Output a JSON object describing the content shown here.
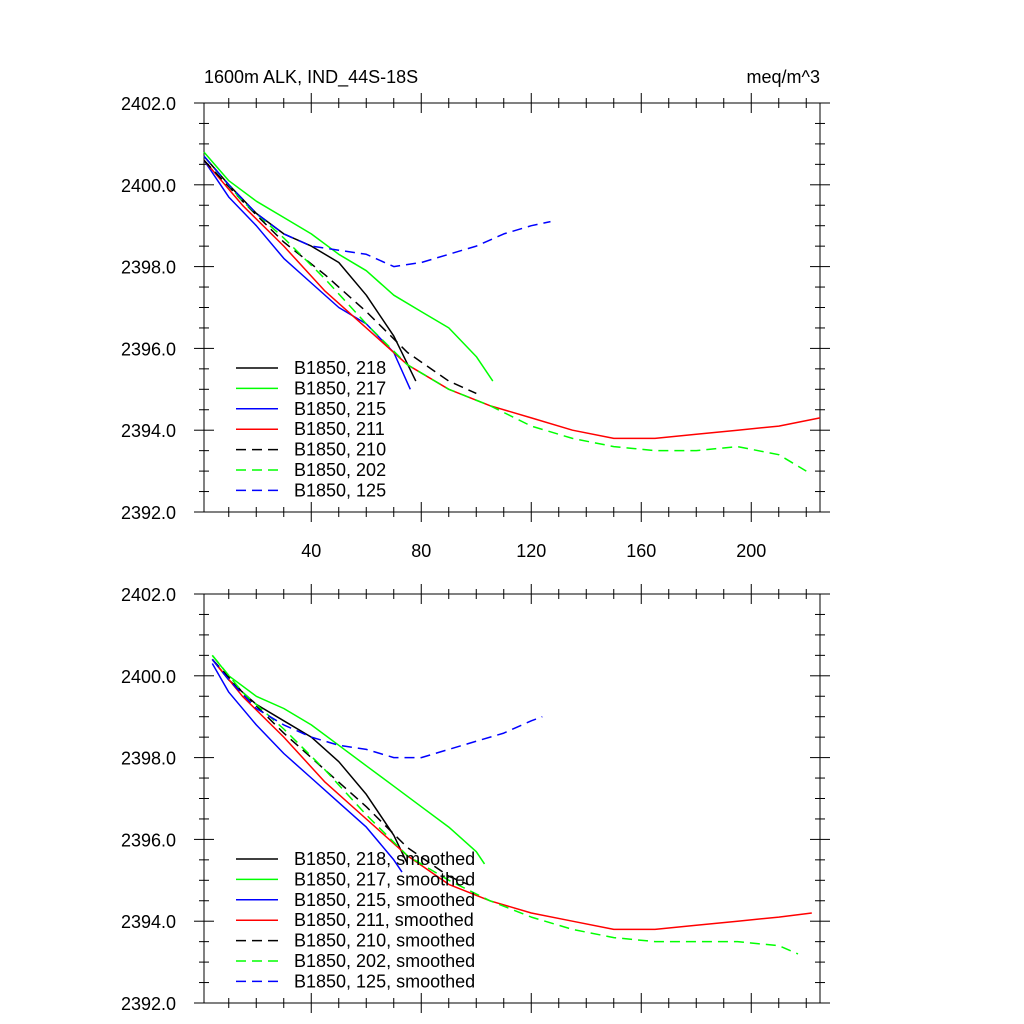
{
  "chart_data": [
    {
      "type": "line",
      "title": "1600m ALK, IND_44S-18S",
      "units": "meq/m^3",
      "xlim": [
        1,
        225
      ],
      "ylim": [
        2392.0,
        2402.0
      ],
      "x_ticks": [
        40,
        80,
        120,
        160,
        200
      ],
      "y_ticks": [
        "2392.0",
        "2394.0",
        "2396.0",
        "2398.0",
        "2400.0",
        "2402.0"
      ],
      "series": [
        {
          "name": "B1850, 218",
          "color": "#000000",
          "dash": "solid",
          "x": [
            1,
            10,
            20,
            30,
            40,
            50,
            60,
            70,
            78
          ],
          "y": [
            2400.7,
            2400.0,
            2399.3,
            2398.8,
            2398.5,
            2398.1,
            2397.3,
            2396.3,
            2395.2
          ]
        },
        {
          "name": "B1850, 217",
          "color": "#00ff00",
          "dash": "solid",
          "x": [
            1,
            10,
            20,
            30,
            40,
            50,
            60,
            70,
            80,
            90,
            100,
            106
          ],
          "y": [
            2400.8,
            2400.1,
            2399.6,
            2399.2,
            2398.8,
            2398.3,
            2397.9,
            2397.3,
            2396.9,
            2396.5,
            2395.8,
            2395.2
          ]
        },
        {
          "name": "B1850, 215",
          "color": "#0000ff",
          "dash": "solid",
          "x": [
            1,
            10,
            20,
            30,
            40,
            50,
            60,
            70,
            76
          ],
          "y": [
            2400.6,
            2399.7,
            2399.0,
            2398.2,
            2397.6,
            2397.0,
            2396.6,
            2395.9,
            2395.0
          ]
        },
        {
          "name": "B1850, 211",
          "color": "#ff0000",
          "dash": "solid",
          "x": [
            1,
            15,
            30,
            45,
            60,
            75,
            90,
            105,
            120,
            135,
            150,
            165,
            180,
            195,
            210,
            225
          ],
          "y": [
            2400.6,
            2399.5,
            2398.5,
            2397.4,
            2396.5,
            2395.6,
            2395.0,
            2394.6,
            2394.3,
            2394.0,
            2393.8,
            2393.8,
            2393.9,
            2394.0,
            2394.1,
            2394.3
          ]
        },
        {
          "name": "B1850, 210",
          "color": "#000000",
          "dash": "dash",
          "x": [
            1,
            15,
            30,
            45,
            60,
            75,
            90,
            100
          ],
          "y": [
            2400.6,
            2399.6,
            2398.6,
            2397.8,
            2396.9,
            2395.9,
            2395.2,
            2394.9
          ]
        },
        {
          "name": "B1850, 202",
          "color": "#00ff00",
          "dash": "dash",
          "x": [
            1,
            15,
            30,
            45,
            60,
            75,
            90,
            105,
            120,
            135,
            150,
            165,
            180,
            195,
            210,
            220
          ],
          "y": [
            2400.7,
            2399.6,
            2398.7,
            2397.7,
            2396.6,
            2395.6,
            2395.0,
            2394.6,
            2394.1,
            2393.8,
            2393.6,
            2393.5,
            2393.5,
            2393.6,
            2393.4,
            2393.0
          ]
        },
        {
          "name": "B1850, 125",
          "color": "#0000ff",
          "dash": "dash",
          "x": [
            1,
            10,
            20,
            30,
            40,
            50,
            60,
            70,
            80,
            90,
            100,
            110,
            120,
            127
          ],
          "y": [
            2400.7,
            2400.0,
            2399.3,
            2398.8,
            2398.5,
            2398.4,
            2398.3,
            2398.0,
            2398.1,
            2398.3,
            2398.5,
            2398.8,
            2399.0,
            2399.1
          ]
        }
      ]
    },
    {
      "type": "line",
      "title": "",
      "units": "",
      "xlim": [
        1,
        225
      ],
      "ylim": [
        2392.0,
        2402.0
      ],
      "x_ticks": [
        40,
        80,
        120,
        160,
        200
      ],
      "y_ticks": [
        "2392.0",
        "2394.0",
        "2396.0",
        "2398.0",
        "2400.0",
        "2402.0"
      ],
      "series": [
        {
          "name": "B1850, 218, smoothed",
          "color": "#000000",
          "dash": "solid",
          "x": [
            4,
            10,
            20,
            30,
            40,
            50,
            60,
            70,
            75
          ],
          "y": [
            2400.4,
            2399.9,
            2399.3,
            2398.9,
            2398.5,
            2397.9,
            2397.1,
            2396.1,
            2395.4
          ]
        },
        {
          "name": "B1850, 217, smoothed",
          "color": "#00ff00",
          "dash": "solid",
          "x": [
            4,
            10,
            20,
            30,
            40,
            50,
            60,
            70,
            80,
            90,
            100,
            103
          ],
          "y": [
            2400.5,
            2400.0,
            2399.5,
            2399.2,
            2398.8,
            2398.3,
            2397.8,
            2397.3,
            2396.8,
            2396.3,
            2395.7,
            2395.4
          ]
        },
        {
          "name": "B1850, 215, smoothed",
          "color": "#0000ff",
          "dash": "solid",
          "x": [
            4,
            10,
            20,
            30,
            40,
            50,
            60,
            70,
            73
          ],
          "y": [
            2400.3,
            2399.6,
            2398.8,
            2398.1,
            2397.5,
            2396.9,
            2396.3,
            2395.5,
            2395.2
          ]
        },
        {
          "name": "B1850, 211, smoothed",
          "color": "#ff0000",
          "dash": "solid",
          "x": [
            4,
            15,
            30,
            45,
            60,
            75,
            90,
            105,
            120,
            135,
            150,
            165,
            180,
            195,
            210,
            222
          ],
          "y": [
            2400.4,
            2399.5,
            2398.5,
            2397.4,
            2396.5,
            2395.6,
            2394.9,
            2394.5,
            2394.2,
            2394.0,
            2393.8,
            2393.8,
            2393.9,
            2394.0,
            2394.1,
            2394.2
          ]
        },
        {
          "name": "B1850, 210, smoothed",
          "color": "#000000",
          "dash": "dash",
          "x": [
            4,
            15,
            30,
            45,
            60,
            75,
            90,
            97
          ],
          "y": [
            2400.4,
            2399.6,
            2398.6,
            2397.7,
            2396.8,
            2395.8,
            2395.1,
            2394.9
          ]
        },
        {
          "name": "B1850, 202, smoothed",
          "color": "#00ff00",
          "dash": "dash",
          "x": [
            4,
            15,
            30,
            45,
            60,
            75,
            90,
            105,
            120,
            135,
            150,
            165,
            180,
            195,
            210,
            217
          ],
          "y": [
            2400.5,
            2399.6,
            2398.7,
            2397.7,
            2396.6,
            2395.6,
            2395.0,
            2394.5,
            2394.1,
            2393.8,
            2393.6,
            2393.5,
            2393.5,
            2393.5,
            2393.4,
            2393.2
          ]
        },
        {
          "name": "B1850, 125, smoothed",
          "color": "#0000ff",
          "dash": "dash",
          "x": [
            4,
            10,
            20,
            30,
            40,
            50,
            60,
            70,
            80,
            90,
            100,
            110,
            120,
            124
          ],
          "y": [
            2400.4,
            2399.9,
            2399.2,
            2398.8,
            2398.5,
            2398.3,
            2398.2,
            2398.0,
            2398.0,
            2398.2,
            2398.4,
            2398.6,
            2398.9,
            2399.0
          ]
        }
      ]
    }
  ]
}
